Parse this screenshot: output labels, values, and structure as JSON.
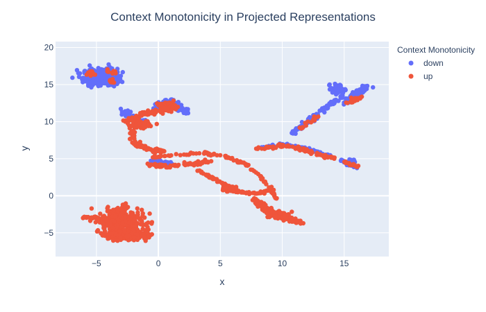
{
  "chart_data": {
    "type": "scatter",
    "title": "Context Monotonicity in Projected Representations",
    "xlabel": "x",
    "ylabel": "y",
    "xlim": [
      -8.3,
      18.6
    ],
    "ylim": [
      -8.2,
      20.8
    ],
    "xticks": [
      -5,
      0,
      5,
      10,
      15
    ],
    "yticks": [
      -5,
      0,
      5,
      10,
      15,
      20
    ],
    "grid": true,
    "background": "#E5ECF6",
    "legend": {
      "title": "Context Monotonicity",
      "placement": "top-right"
    },
    "series": [
      {
        "name": "down",
        "color": "#636EFA",
        "clusters": [
          {
            "shape": "blob",
            "center": [
              -4.7,
              16.0
            ],
            "spread": [
              1.25,
              1.05
            ],
            "count": 380
          },
          {
            "shape": "line",
            "points": [
              [
                -3.0,
                11.5
              ],
              [
                -2.0,
                10.5
              ],
              [
                -1.0,
                9.8
              ]
            ],
            "width": 0.3,
            "count": 60
          },
          {
            "shape": "line",
            "points": [
              [
                0.0,
                12.0
              ],
              [
                1.0,
                12.8
              ],
              [
                2.3,
                11.2
              ]
            ],
            "width": 0.4,
            "count": 80
          },
          {
            "shape": "line",
            "points": [
              [
                -0.6,
                4.8
              ],
              [
                1.2,
                4.3
              ]
            ],
            "width": 0.2,
            "count": 30
          },
          {
            "shape": "line",
            "points": [
              [
                10.8,
                8.3
              ],
              [
                13.0,
                11.2
              ],
              [
                14.8,
                13.5
              ]
            ],
            "width": 0.25,
            "count": 80
          },
          {
            "shape": "blob",
            "center": [
              14.5,
              14.4
            ],
            "spread": [
              0.5,
              0.6
            ],
            "count": 60
          },
          {
            "shape": "line",
            "points": [
              [
                15.2,
                12.6
              ],
              [
                16.0,
                13.8
              ],
              [
                17.0,
                14.8
              ]
            ],
            "width": 0.3,
            "count": 110
          },
          {
            "shape": "line",
            "points": [
              [
                8.0,
                6.4
              ],
              [
                10.0,
                6.9
              ],
              [
                12.0,
                6.3
              ],
              [
                14.0,
                5.3
              ]
            ],
            "width": 0.2,
            "count": 60
          },
          {
            "shape": "line",
            "points": [
              [
                14.7,
                4.9
              ],
              [
                15.5,
                4.2
              ],
              [
                16.2,
                3.7
              ]
            ],
            "width": 0.2,
            "count": 30
          },
          {
            "shape": "blob",
            "center": [
              15.6,
              4.6
            ],
            "spread": [
              0.3,
              0.3
            ],
            "count": 15
          }
        ]
      },
      {
        "name": "up",
        "color": "#EF553B",
        "clusters": [
          {
            "shape": "blob",
            "center": [
              -5.5,
              16.5
            ],
            "spread": [
              0.45,
              0.35
            ],
            "count": 12
          },
          {
            "shape": "blob",
            "center": [
              -3.8,
              16.7
            ],
            "spread": [
              0.4,
              0.3
            ],
            "count": 10
          },
          {
            "shape": "blob",
            "center": [
              -3.8,
              15.4
            ],
            "spread": [
              0.3,
              0.4
            ],
            "count": 8
          },
          {
            "shape": "blob",
            "center": [
              0.7,
              12.0
            ],
            "spread": [
              0.6,
              0.55
            ],
            "count": 90
          },
          {
            "shape": "line",
            "points": [
              [
                -2.6,
                10.0
              ],
              [
                -1.5,
                10.8
              ],
              [
                -0.4,
                11.3
              ]
            ],
            "width": 0.3,
            "count": 50
          },
          {
            "shape": "blob",
            "center": [
              -1.5,
              9.6
            ],
            "spread": [
              0.7,
              0.45
            ],
            "count": 80
          },
          {
            "shape": "line",
            "points": [
              [
                -2.1,
                8.9
              ],
              [
                -2.0,
                7.5
              ],
              [
                -1.6,
                6.8
              ],
              [
                -0.8,
                6.3
              ],
              [
                0.6,
                5.9
              ]
            ],
            "width": 0.25,
            "count": 80
          },
          {
            "shape": "line",
            "points": [
              [
                -0.9,
                4.2
              ],
              [
                1.0,
                4.0
              ],
              [
                3.0,
                4.3
              ],
              [
                4.3,
                4.8
              ]
            ],
            "width": 0.2,
            "count": 70
          },
          {
            "shape": "line",
            "points": [
              [
                -0.6,
                5.2
              ],
              [
                1.6,
                5.5
              ],
              [
                3.6,
                5.8
              ],
              [
                5.5,
                5.2
              ],
              [
                7.0,
                4.3
              ],
              [
                8.0,
                3.0
              ],
              [
                9.0,
                1.2
              ],
              [
                9.6,
                -0.6
              ]
            ],
            "width": 0.15,
            "count": 90
          },
          {
            "shape": "line",
            "points": [
              [
                3.2,
                3.4
              ],
              [
                4.5,
                2.3
              ],
              [
                5.5,
                1.3
              ],
              [
                6.6,
                0.5
              ],
              [
                8.0,
                0.3
              ],
              [
                9.4,
                0.9
              ]
            ],
            "width": 0.15,
            "count": 90
          },
          {
            "shape": "blob",
            "center": [
              5.6,
              1.0
            ],
            "spread": [
              0.5,
              0.4
            ],
            "count": 40
          },
          {
            "shape": "line",
            "points": [
              [
                7.8,
                -0.5
              ],
              [
                8.6,
                -1.6
              ],
              [
                9.5,
                -2.5
              ],
              [
                10.6,
                -3.2
              ],
              [
                11.6,
                -3.6
              ]
            ],
            "width": 0.3,
            "count": 150
          },
          {
            "shape": "blob",
            "center": [
              9.5,
              -2.5
            ],
            "spread": [
              0.7,
              0.5
            ],
            "count": 90
          },
          {
            "shape": "line",
            "points": [
              [
                7.8,
                6.3
              ],
              [
                10.0,
                6.8
              ],
              [
                11.5,
                6.3
              ],
              [
                13.0,
                5.6
              ],
              [
                14.3,
                5.0
              ]
            ],
            "width": 0.2,
            "count": 90
          },
          {
            "shape": "line",
            "points": [
              [
                15.1,
                4.6
              ],
              [
                15.5,
                4.3
              ],
              [
                16.1,
                3.9
              ]
            ],
            "width": 0.15,
            "count": 20
          },
          {
            "shape": "line",
            "points": [
              [
                11.4,
                9.0
              ],
              [
                12.0,
                9.8
              ],
              [
                12.7,
                10.8
              ]
            ],
            "width": 0.2,
            "count": 15
          },
          {
            "shape": "line",
            "points": [
              [
                15.3,
                12.5
              ],
              [
                15.8,
                12.9
              ],
              [
                16.3,
                13.2
              ]
            ],
            "width": 0.2,
            "count": 20
          },
          {
            "shape": "blob",
            "center": [
              -3.0,
              -3.5
            ],
            "spread": [
              1.6,
              1.3
            ],
            "count": 320
          },
          {
            "shape": "blob",
            "center": [
              -2.5,
              -5.3
            ],
            "spread": [
              1.6,
              0.55
            ],
            "count": 260
          },
          {
            "shape": "line",
            "points": [
              [
                -6.1,
                -2.9
              ],
              [
                -5.0,
                -3.0
              ],
              [
                -4.0,
                -3.3
              ]
            ],
            "width": 0.2,
            "count": 40
          },
          {
            "shape": "line",
            "points": [
              [
                -2.7,
                -1.0
              ],
              [
                -2.9,
                -2.0
              ],
              [
                -3.3,
                -2.6
              ]
            ],
            "width": 0.3,
            "count": 30
          }
        ]
      }
    ]
  }
}
